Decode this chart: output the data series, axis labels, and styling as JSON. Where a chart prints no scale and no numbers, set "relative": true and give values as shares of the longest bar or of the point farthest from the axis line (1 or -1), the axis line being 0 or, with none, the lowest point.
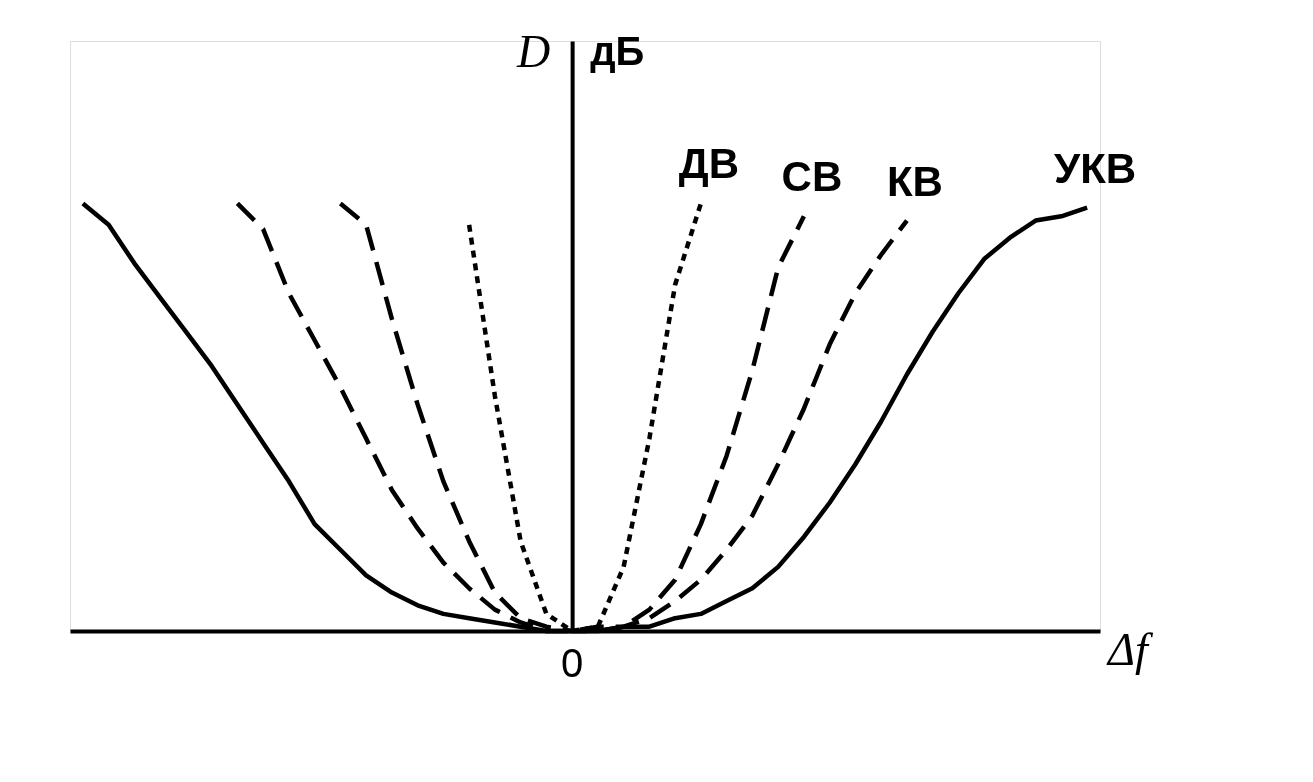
{
  "chart_data": {
    "type": "line",
    "relative": true,
    "ylabel": "D",
    "xlabel": "Δf",
    "annotations": [
      "дБ",
      "0"
    ],
    "categories": [
      null,
      null,
      null,
      null,
      null,
      null,
      null,
      null,
      null,
      null,
      null,
      null,
      null,
      null,
      null,
      null,
      null,
      null,
      null,
      null,
      null,
      null,
      null,
      null,
      null,
      null,
      null,
      null,
      null,
      null,
      null,
      null,
      null,
      null,
      null,
      null,
      null,
      null,
      null,
      null
    ],
    "grid": false,
    "marker": "none",
    "series": [
      {
        "name": "ДВ",
        "color": "#000000",
        "line_style": "dotted",
        "values": [
          null,
          null,
          null,
          null,
          null,
          null,
          null,
          null,
          null,
          null,
          null,
          null,
          null,
          null,
          null,
          0.95,
          0.55,
          0.21,
          0.04,
          0,
          0.01,
          0.15,
          0.45,
          0.81,
          1.0,
          null,
          null,
          null,
          null,
          null,
          null,
          null,
          null,
          null,
          null,
          null,
          null,
          null,
          null,
          null
        ]
      },
      {
        "name": "СВ",
        "color": "#000000",
        "line_style": "dashed",
        "values": [
          null,
          null,
          null,
          null,
          null,
          null,
          null,
          null,
          null,
          null,
          1.0,
          0.95,
          0.73,
          0.53,
          0.35,
          0.21,
          0.09,
          0.03,
          0.01,
          0,
          0.0,
          0.01,
          0.05,
          0.12,
          0.25,
          0.41,
          0.61,
          0.85,
          0.97,
          null,
          null,
          null,
          null,
          null,
          null,
          null,
          null,
          null,
          null,
          null
        ]
      },
      {
        "name": "КВ",
        "color": "#000000",
        "line_style": "dashed",
        "values": [
          null,
          null,
          null,
          null,
          null,
          null,
          1.0,
          0.94,
          0.79,
          0.68,
          0.57,
          0.45,
          0.33,
          0.24,
          0.16,
          0.1,
          0.05,
          0.02,
          0.0,
          0,
          0.01,
          0.01,
          0.03,
          0.07,
          0.12,
          0.19,
          0.27,
          0.39,
          0.52,
          0.67,
          0.79,
          0.88,
          0.96,
          null,
          null,
          null,
          null,
          null,
          null,
          null
        ]
      },
      {
        "name": "УКВ",
        "color": "#000000",
        "line_style": "solid",
        "values": [
          1.0,
          0.95,
          0.86,
          0.78,
          0.7,
          0.62,
          0.53,
          0.44,
          0.35,
          0.25,
          0.19,
          0.13,
          0.09,
          0.06,
          0.04,
          0.03,
          0.02,
          0.01,
          0.0,
          0,
          0.0,
          0.01,
          0.01,
          0.03,
          0.04,
          0.07,
          0.1,
          0.15,
          0.22,
          0.3,
          0.39,
          0.49,
          0.6,
          0.7,
          0.79,
          0.87,
          0.92,
          0.96,
          0.97,
          0.99
        ]
      }
    ]
  }
}
